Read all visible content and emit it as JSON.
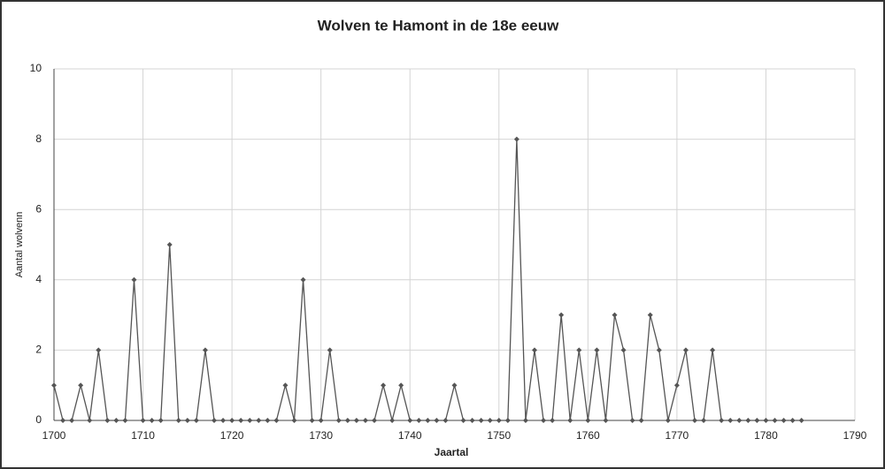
{
  "chart_data": {
    "type": "line",
    "title": "Wolven te Hamont in de 18e eeuw",
    "xlabel": "Jaartal",
    "ylabel": "Aantal wolvenn",
    "x": [
      1700,
      1701,
      1702,
      1703,
      1704,
      1705,
      1706,
      1707,
      1708,
      1709,
      1710,
      1711,
      1712,
      1713,
      1714,
      1715,
      1716,
      1717,
      1718,
      1719,
      1720,
      1721,
      1722,
      1723,
      1724,
      1725,
      1726,
      1727,
      1728,
      1729,
      1730,
      1731,
      1732,
      1733,
      1734,
      1735,
      1736,
      1737,
      1738,
      1739,
      1740,
      1741,
      1742,
      1743,
      1744,
      1745,
      1746,
      1747,
      1748,
      1749,
      1750,
      1751,
      1752,
      1753,
      1754,
      1755,
      1756,
      1757,
      1758,
      1759,
      1760,
      1761,
      1762,
      1763,
      1764,
      1765,
      1766,
      1767,
      1768,
      1769,
      1770,
      1771,
      1772,
      1773,
      1774,
      1775,
      1776,
      1777,
      1778,
      1779,
      1780,
      1781,
      1782,
      1783,
      1784
    ],
    "series": [
      {
        "name": "Aantal wolvenn",
        "color": "#555555",
        "values": [
          1,
          0,
          0,
          1,
          0,
          2,
          0,
          0,
          0,
          4,
          0,
          0,
          0,
          5,
          0,
          0,
          0,
          2,
          0,
          0,
          0,
          0,
          0,
          0,
          0,
          0,
          1,
          0,
          4,
          0,
          0,
          2,
          0,
          0,
          0,
          0,
          0,
          1,
          0,
          1,
          0,
          0,
          0,
          0,
          0,
          1,
          0,
          0,
          0,
          0,
          0,
          0,
          8,
          0,
          2,
          0,
          0,
          3,
          0,
          2,
          0,
          2,
          0,
          3,
          2,
          0,
          0,
          3,
          2,
          0,
          1,
          2,
          0,
          0,
          2,
          0,
          0,
          0,
          0,
          0,
          0,
          0,
          0,
          0,
          0
        ]
      }
    ],
    "xlim": [
      1700,
      1790
    ],
    "xticks": [
      1700,
      1710,
      1720,
      1730,
      1740,
      1750,
      1760,
      1770,
      1780,
      1790
    ],
    "ylim": [
      0,
      10
    ],
    "yticks": [
      0,
      2,
      4,
      6,
      8,
      10
    ],
    "grid": true
  }
}
